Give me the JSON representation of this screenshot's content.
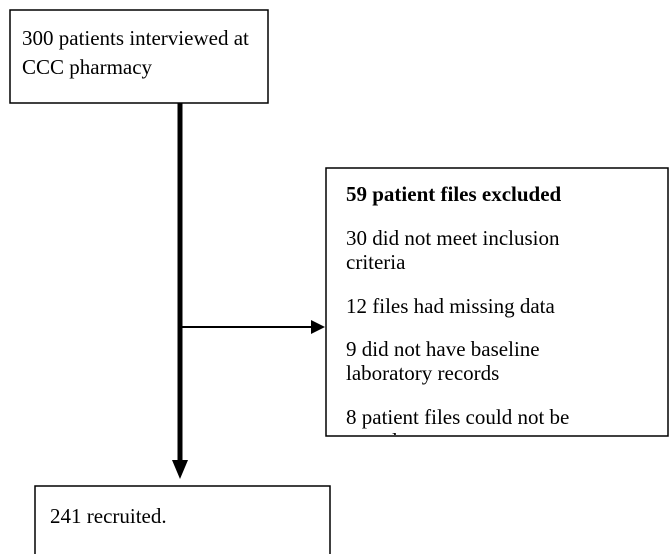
{
  "top_box": {
    "lines": [
      "300 patients interviewed at",
      "CCC pharmacy"
    ]
  },
  "excluded_box": {
    "title": "59 patient files excluded",
    "items": [
      [
        "30 did not meet inclusion",
        "criteria"
      ],
      [
        "12 files had missing data"
      ],
      [
        "9 did not have baseline",
        "laboratory records"
      ],
      [
        "8 patient files could not be",
        "traced"
      ]
    ]
  },
  "bottom_box": {
    "lines": [
      "241 recruited."
    ]
  }
}
